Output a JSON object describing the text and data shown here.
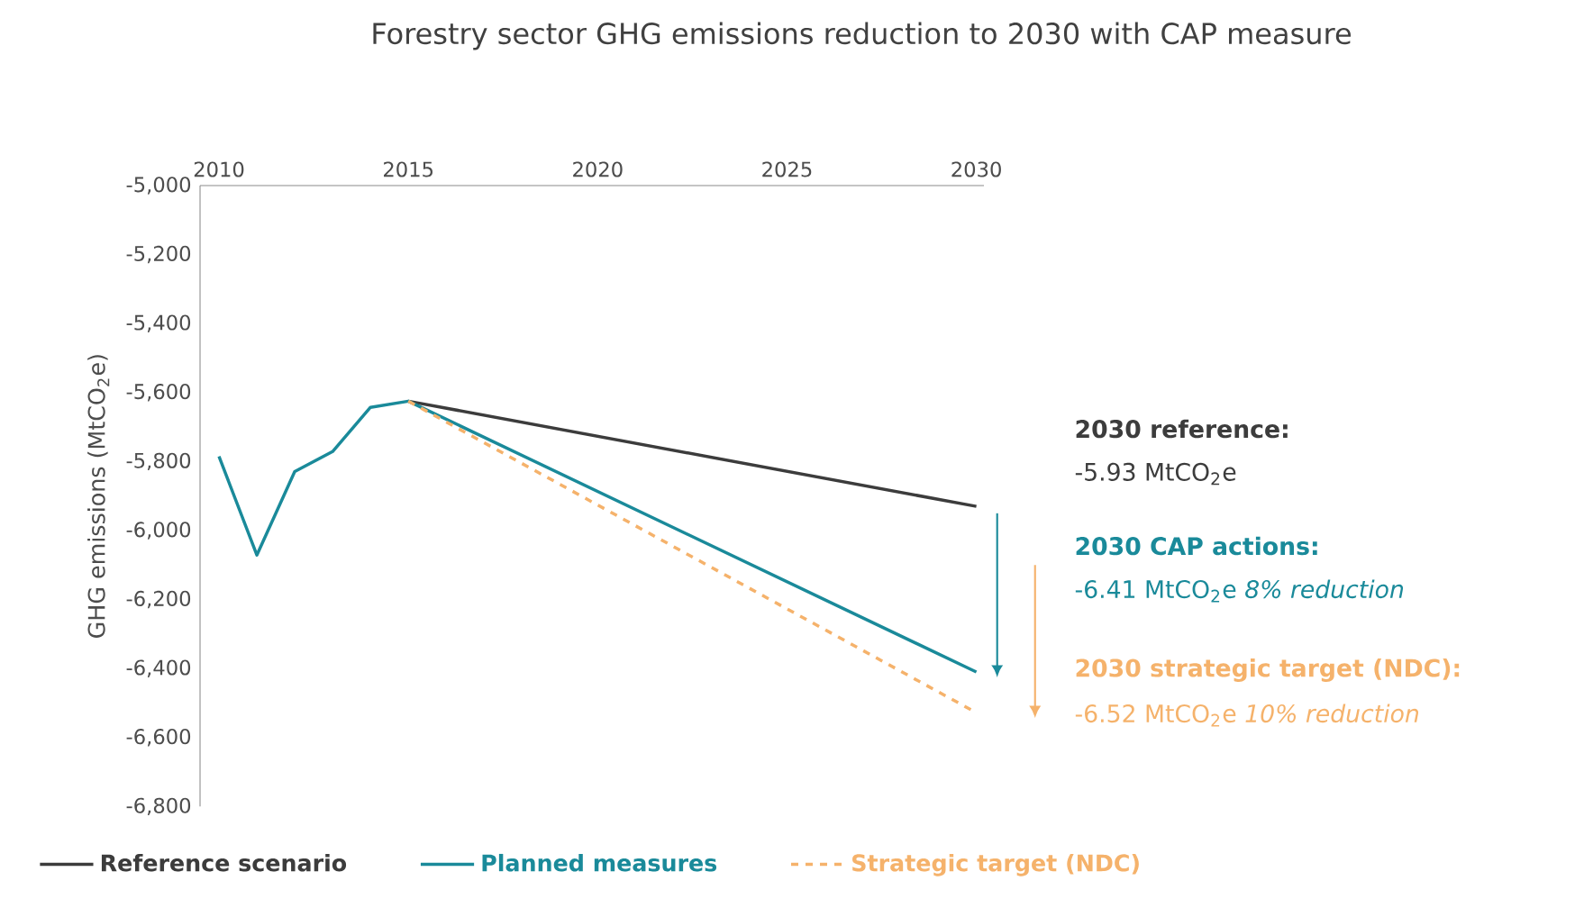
{
  "chart_data": {
    "type": "line",
    "title": "Forestry sector GHG emissions reduction to 2030 with CAP measure",
    "ylabel": "GHG emissions (MtCO$_{2}$e)",
    "xlim": [
      2009.5,
      2030.2
    ],
    "xticks": [
      2010,
      2015,
      2020,
      2025,
      2030
    ],
    "ylim": [
      -6800,
      -5000
    ],
    "yticks": [
      {
        "value": -5000,
        "label": "-5,000"
      },
      {
        "value": -5200,
        "label": "-5,200"
      },
      {
        "value": -5400,
        "label": "-5,400"
      },
      {
        "value": -5600,
        "label": "-5,600"
      },
      {
        "value": -5800,
        "label": "-5,800"
      },
      {
        "value": -6000,
        "label": "-6,000"
      },
      {
        "value": -6200,
        "label": "-6,200"
      },
      {
        "value": -6400,
        "label": "-6,400"
      },
      {
        "value": -6600,
        "label": "-6,600"
      },
      {
        "value": -6800,
        "label": "-6,800"
      }
    ],
    "series": [
      {
        "name": "Reference scenario",
        "color": "#3c3c3c",
        "x": [
          2015,
          2030
        ],
        "values": [
          -5625,
          -5930
        ],
        "line_style": "solid"
      },
      {
        "name": "Planned measures",
        "color": "#1a8a9a",
        "x": [
          2010,
          2011,
          2012,
          2013,
          2014,
          2015,
          2030
        ],
        "values": [
          -5785,
          -6071,
          -5829,
          -5771,
          -5643,
          -5625,
          -6410
        ],
        "line_style": "solid"
      },
      {
        "name": "Strategic target (NDC)",
        "color": "#f5b26b",
        "x": [
          2015,
          2030
        ],
        "values": [
          -5625,
          -6528
        ],
        "line_style": "dashed"
      }
    ],
    "annotations": [
      "2030 reference:",
      "-5.93 MtCO$_{2}$e",
      "2030 CAP actions:",
      "-6.41 MtCO$_{2}$e   *8% reduction*",
      "2030 strategic target (NDC):",
      "-6.52 MtCO$_{2}$e   *10% reduction*"
    ],
    "legend": "bottom",
    "grid": false,
    "marker": "none"
  }
}
